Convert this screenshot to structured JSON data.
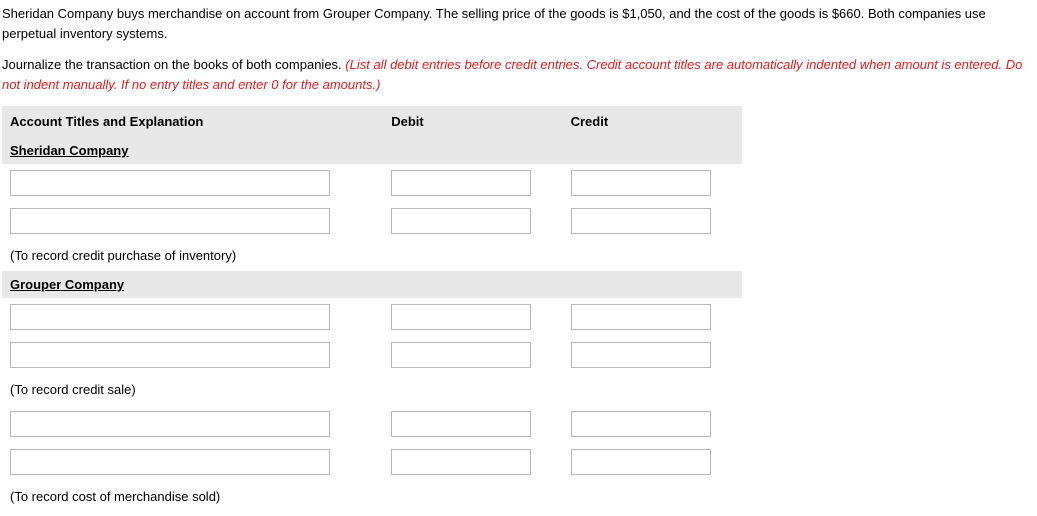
{
  "intro_text": "Sheridan Company buys merchandise on account from Grouper Company. The selling price of the goods is $1,050, and the cost of the goods is $660. Both companies use perpetual inventory systems.",
  "instruction_lead": "Journalize the transaction on the books of both companies. ",
  "instruction_red": "(List all debit entries before credit entries. Credit account titles are automatically indented when amount is entered. Do not indent manually. If no entry titles and enter 0 for the amounts.)",
  "table": {
    "headers": {
      "account": "Account Titles and Explanation",
      "debit": "Debit",
      "credit": "Credit"
    },
    "company1": "Sheridan Company",
    "caption1": "(To record credit purchase of inventory)",
    "company2": "Grouper Company",
    "caption2": "(To record credit sale)",
    "caption3": "(To record cost of merchandise sold)"
  }
}
